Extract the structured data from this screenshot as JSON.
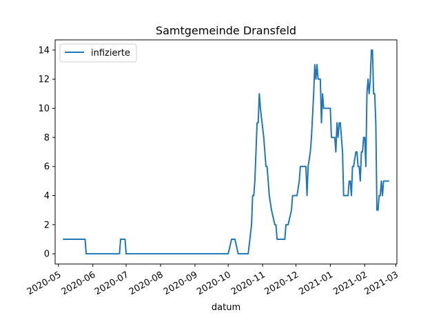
{
  "chart_data": {
    "type": "line",
    "title": "Samtgemeinde Dransfeld",
    "xlabel": "datum",
    "ylabel": "",
    "x_type": "date",
    "xlim": [
      "2020-04-28",
      "2021-03-02"
    ],
    "ylim": [
      -0.7,
      14.7
    ],
    "x_ticks": [
      "2020-05-01",
      "2020-06-01",
      "2020-07-01",
      "2020-08-01",
      "2020-09-01",
      "2020-10-01",
      "2020-11-01",
      "2020-12-01",
      "2021-01-01",
      "2021-02-01",
      "2021-03-01"
    ],
    "x_tick_labels": [
      "2020-05",
      "2020-06",
      "2020-07",
      "2020-08",
      "2020-09",
      "2020-10",
      "2020-11",
      "2020-12",
      "2021-01",
      "2021-02",
      "2021-03"
    ],
    "y_ticks": [
      0,
      2,
      4,
      6,
      8,
      10,
      12,
      14
    ],
    "grid": false,
    "legend": {
      "position": "top-left",
      "entries": [
        "infizierte"
      ]
    },
    "series": [
      {
        "name": "infizierte",
        "color": "#1f77b4",
        "points": [
          [
            "2020-05-05",
            1
          ],
          [
            "2020-05-25",
            1
          ],
          [
            "2020-05-26",
            0
          ],
          [
            "2020-06-25",
            0
          ],
          [
            "2020-06-26",
            1
          ],
          [
            "2020-06-30",
            1
          ],
          [
            "2020-07-01",
            0
          ],
          [
            "2020-10-01",
            0
          ],
          [
            "2020-10-04",
            1
          ],
          [
            "2020-10-07",
            1
          ],
          [
            "2020-10-10",
            0
          ],
          [
            "2020-10-19",
            0
          ],
          [
            "2020-10-22",
            2
          ],
          [
            "2020-10-23",
            4
          ],
          [
            "2020-10-24",
            4
          ],
          [
            "2020-10-25",
            5
          ],
          [
            "2020-10-26",
            7
          ],
          [
            "2020-10-27",
            9
          ],
          [
            "2020-10-28",
            9
          ],
          [
            "2020-10-29",
            11
          ],
          [
            "2020-10-30",
            10
          ],
          [
            "2020-11-02",
            8
          ],
          [
            "2020-11-04",
            6
          ],
          [
            "2020-11-05",
            6
          ],
          [
            "2020-11-07",
            4
          ],
          [
            "2020-11-09",
            3
          ],
          [
            "2020-11-12",
            2
          ],
          [
            "2020-11-13",
            2
          ],
          [
            "2020-11-14",
            1
          ],
          [
            "2020-11-21",
            1
          ],
          [
            "2020-11-22",
            2
          ],
          [
            "2020-11-24",
            2
          ],
          [
            "2020-11-27",
            3
          ],
          [
            "2020-11-28",
            4
          ],
          [
            "2020-12-02",
            4
          ],
          [
            "2020-12-04",
            5
          ],
          [
            "2020-12-05",
            6
          ],
          [
            "2020-12-10",
            6
          ],
          [
            "2020-12-11",
            4
          ],
          [
            "2020-12-12",
            6
          ],
          [
            "2020-12-14",
            7
          ],
          [
            "2020-12-15",
            8
          ],
          [
            "2020-12-17",
            11
          ],
          [
            "2020-12-18",
            13
          ],
          [
            "2020-12-19",
            12
          ],
          [
            "2020-12-20",
            13
          ],
          [
            "2020-12-21",
            12
          ],
          [
            "2020-12-23",
            12
          ],
          [
            "2020-12-24",
            9
          ],
          [
            "2020-12-25",
            11
          ],
          [
            "2020-12-26",
            10
          ],
          [
            "2021-01-01",
            10
          ],
          [
            "2021-01-02",
            8
          ],
          [
            "2021-01-05",
            8
          ],
          [
            "2021-01-06",
            7
          ],
          [
            "2021-01-07",
            9
          ],
          [
            "2021-01-08",
            8
          ],
          [
            "2021-01-09",
            9
          ],
          [
            "2021-01-10",
            9
          ],
          [
            "2021-01-12",
            7
          ],
          [
            "2021-01-13",
            4
          ],
          [
            "2021-01-17",
            4
          ],
          [
            "2021-01-18",
            5
          ],
          [
            "2021-01-19",
            5
          ],
          [
            "2021-01-20",
            4
          ],
          [
            "2021-01-21",
            6
          ],
          [
            "2021-01-22",
            6
          ],
          [
            "2021-01-24",
            7
          ],
          [
            "2021-01-25",
            7
          ],
          [
            "2021-01-26",
            6
          ],
          [
            "2021-01-27",
            6
          ],
          [
            "2021-01-28",
            5
          ],
          [
            "2021-01-29",
            7
          ],
          [
            "2021-01-30",
            7
          ],
          [
            "2021-01-31",
            8
          ],
          [
            "2021-02-01",
            8
          ],
          [
            "2021-02-02",
            6
          ],
          [
            "2021-02-03",
            11
          ],
          [
            "2021-02-04",
            12
          ],
          [
            "2021-02-05",
            11
          ],
          [
            "2021-02-06",
            12
          ],
          [
            "2021-02-07",
            14
          ],
          [
            "2021-02-08",
            14
          ],
          [
            "2021-02-09",
            11
          ],
          [
            "2021-02-10",
            11
          ],
          [
            "2021-02-11",
            9
          ],
          [
            "2021-02-12",
            3
          ],
          [
            "2021-02-13",
            3
          ],
          [
            "2021-02-14",
            4
          ],
          [
            "2021-02-15",
            4
          ],
          [
            "2021-02-16",
            5
          ],
          [
            "2021-02-17",
            4
          ],
          [
            "2021-02-18",
            5
          ],
          [
            "2021-02-23",
            5
          ]
        ]
      }
    ]
  }
}
